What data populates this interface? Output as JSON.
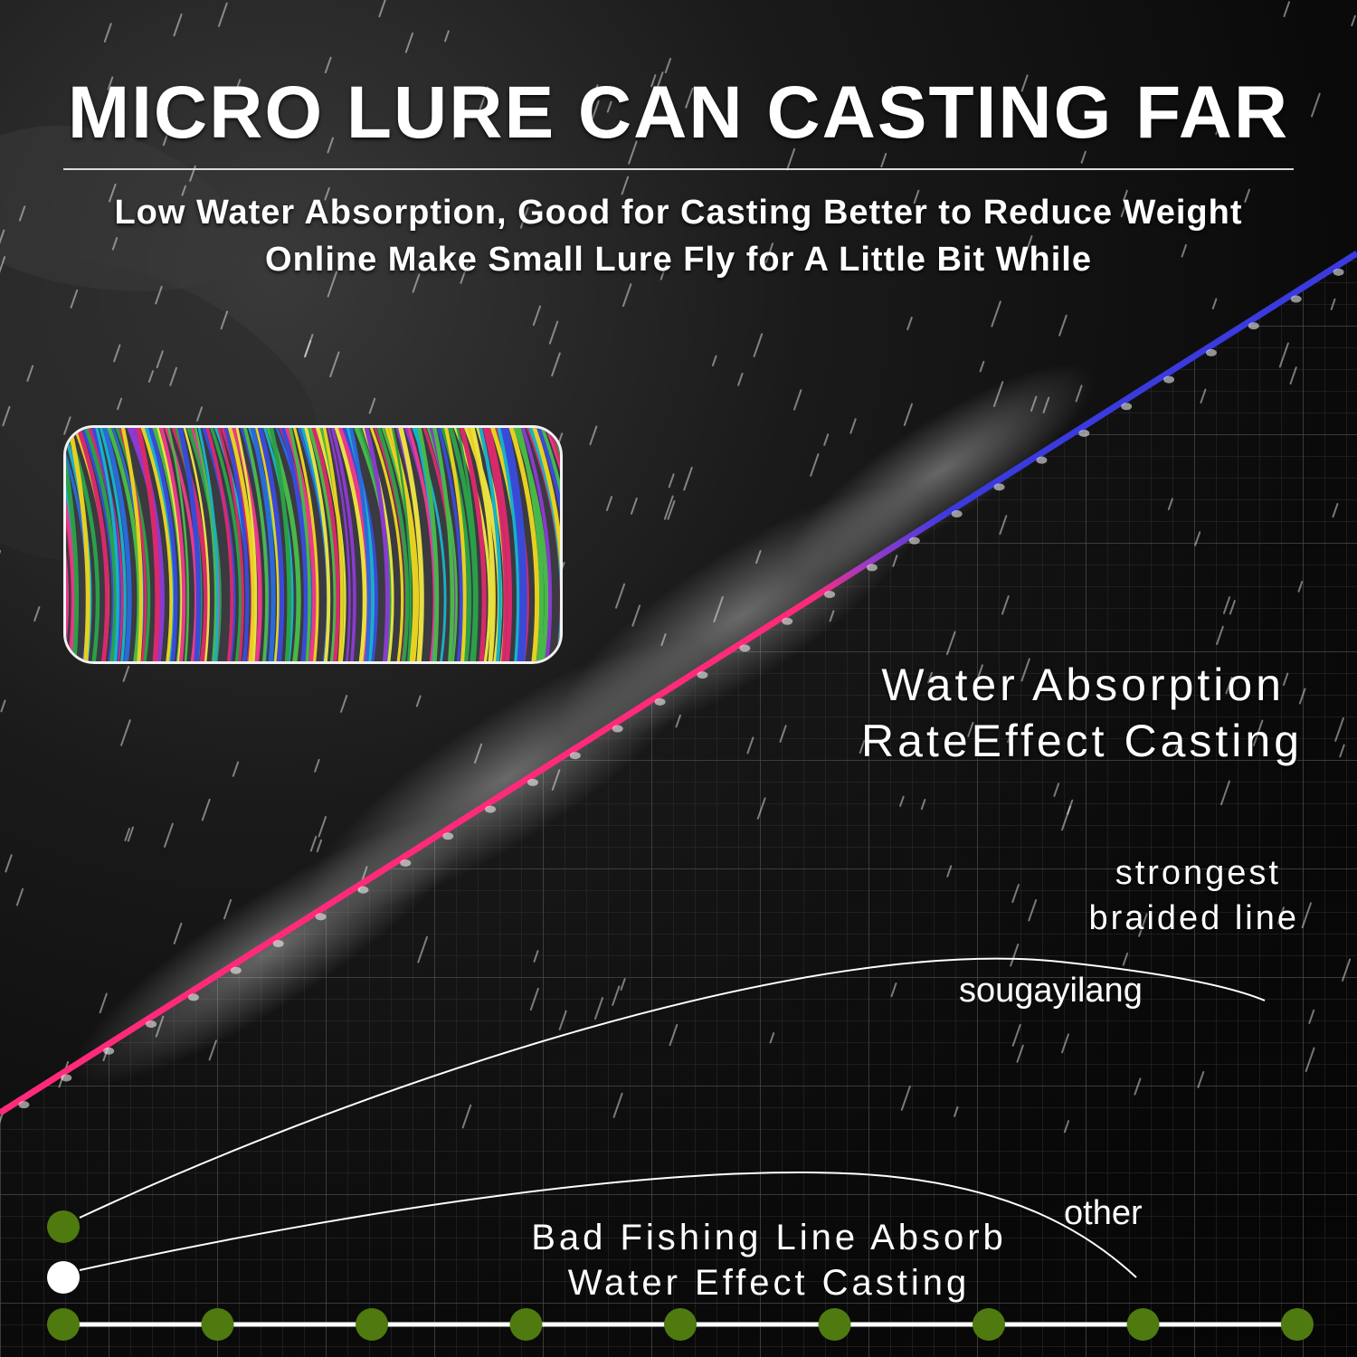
{
  "header": {
    "title": "MICRO LURE CAN CASTING FAR",
    "subtitle_line_1": "Low Water Absorption, Good for Casting Better to Reduce Weight",
    "subtitle_line_2": "Online Make Small Lure Fly for A Little Bit While"
  },
  "callouts": {
    "water_absorption_line_1": "Water Absorption",
    "water_absorption_line_2": "RateEffect Casting",
    "strongest_line_1": "strongest",
    "strongest_line_2": "braided line"
  },
  "comparison": {
    "brand_label": "sougayilang",
    "other_label": "other",
    "bad_line_1": "Bad Fishing Line Absorb",
    "bad_line_2": "Water Effect Casting",
    "brand_color": "#4e7a10",
    "other_color": "#ffffff",
    "axis_markers": 9
  },
  "colors": {
    "line_pink": "#ff2a7a",
    "line_blue": "#3a3adf",
    "grid": "#3a3a3a",
    "marker_green": "#4e7a10"
  },
  "icons": {
    "swatch": "rainbow-braided-line-spool"
  }
}
